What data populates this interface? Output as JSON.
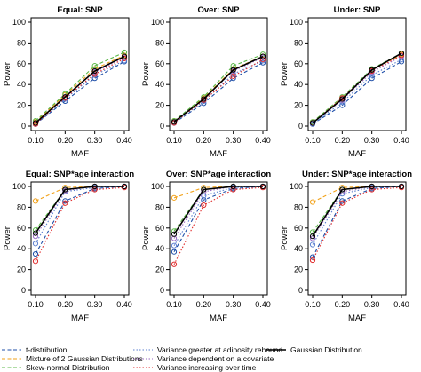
{
  "chart_data": [
    {
      "type": "line",
      "title": "Equal: SNP",
      "xlabel": "MAF",
      "ylabel": "Power",
      "x": [
        "0.10",
        "0.20",
        "0.30",
        "0.40"
      ],
      "ylim": [
        0,
        100
      ],
      "yticks": [
        0,
        20,
        40,
        60,
        80,
        100
      ],
      "series": [
        {
          "name": "t-distribution",
          "values": [
            2,
            24,
            46,
            62
          ]
        },
        {
          "name": "Mixture of 2 Gaussian Distributions",
          "values": [
            4,
            30,
            55,
            68
          ]
        },
        {
          "name": "Skew-normal Distribution",
          "values": [
            5,
            31,
            58,
            71
          ]
        },
        {
          "name": "Variance greater at adiposity rebound",
          "values": [
            2,
            26,
            49,
            63
          ]
        },
        {
          "name": "Variance dependent on a covariate",
          "values": [
            3,
            28,
            52,
            66
          ]
        },
        {
          "name": "Variance increasing over time",
          "values": [
            2,
            27,
            50,
            65
          ]
        },
        {
          "name": "Gaussian Distribution",
          "values": [
            3,
            28,
            53,
            67
          ]
        }
      ]
    },
    {
      "type": "line",
      "title": "Over: SNP",
      "xlabel": "MAF",
      "ylabel": "Power",
      "x": [
        "0.10",
        "0.20",
        "0.30",
        "0.40"
      ],
      "ylim": [
        0,
        100
      ],
      "yticks": [
        0,
        20,
        40,
        60,
        80,
        100
      ],
      "series": [
        {
          "name": "t-distribution",
          "values": [
            3,
            22,
            46,
            61
          ]
        },
        {
          "name": "Mixture of 2 Gaussian Distributions",
          "values": [
            5,
            27,
            55,
            67
          ]
        },
        {
          "name": "Skew-normal Distribution",
          "values": [
            5,
            28,
            58,
            69
          ]
        },
        {
          "name": "Variance greater at adiposity rebound",
          "values": [
            3,
            24,
            50,
            63
          ]
        },
        {
          "name": "Variance dependent on a covariate",
          "values": [
            4,
            26,
            53,
            66
          ]
        },
        {
          "name": "Variance increasing over time",
          "values": [
            3,
            25,
            48,
            64
          ]
        },
        {
          "name": "Gaussian Distribution",
          "values": [
            4,
            26,
            54,
            67
          ]
        }
      ]
    },
    {
      "type": "line",
      "title": "Under: SNP",
      "xlabel": "MAF",
      "ylabel": "Power",
      "x": [
        "0.10",
        "0.20",
        "0.30",
        "0.40"
      ],
      "ylim": [
        0,
        100
      ],
      "yticks": [
        0,
        20,
        40,
        60,
        80,
        100
      ],
      "series": [
        {
          "name": "t-distribution",
          "values": [
            2,
            20,
            46,
            62
          ]
        },
        {
          "name": "Mixture of 2 Gaussian Distributions",
          "values": [
            4,
            27,
            54,
            69
          ]
        },
        {
          "name": "Skew-normal Distribution",
          "values": [
            4,
            28,
            55,
            70
          ]
        },
        {
          "name": "Variance greater at adiposity rebound",
          "values": [
            2,
            23,
            49,
            64
          ]
        },
        {
          "name": "Variance dependent on a covariate",
          "values": [
            3,
            25,
            52,
            67
          ]
        },
        {
          "name": "Variance increasing over time",
          "values": [
            3,
            27,
            53,
            68
          ]
        },
        {
          "name": "Gaussian Distribution",
          "values": [
            3,
            26,
            54,
            70
          ]
        }
      ]
    },
    {
      "type": "line",
      "title": "Equal: SNP*age interaction",
      "xlabel": "MAF",
      "ylabel": "Power",
      "x": [
        "0.10",
        "0.20",
        "0.30",
        "0.40"
      ],
      "ylim": [
        0,
        100
      ],
      "yticks": [
        0,
        20,
        40,
        60,
        80,
        100
      ],
      "series": [
        {
          "name": "t-distribution",
          "values": [
            35,
            86,
            98,
            100
          ]
        },
        {
          "name": "Mixture of 2 Gaussian Distributions",
          "values": [
            86,
            99,
            100,
            100
          ]
        },
        {
          "name": "Skew-normal Distribution",
          "values": [
            58,
            97,
            100,
            100
          ]
        },
        {
          "name": "Variance greater at adiposity rebound",
          "values": [
            45,
            95,
            99,
            100
          ]
        },
        {
          "name": "Variance dependent on a covariate",
          "values": [
            52,
            96,
            100,
            100
          ]
        },
        {
          "name": "Variance increasing over time",
          "values": [
            28,
            84,
            97,
            99
          ]
        },
        {
          "name": "Gaussian Distribution",
          "values": [
            55,
            97,
            100,
            100
          ]
        }
      ]
    },
    {
      "type": "line",
      "title": "Over: SNP*age interaction",
      "xlabel": "MAF",
      "ylabel": "Power",
      "x": [
        "0.10",
        "0.20",
        "0.30",
        "0.40"
      ],
      "ylim": [
        0,
        100
      ],
      "yticks": [
        0,
        20,
        40,
        60,
        80,
        100
      ],
      "series": [
        {
          "name": "t-distribution",
          "values": [
            37,
            87,
            98,
            100
          ]
        },
        {
          "name": "Mixture of 2 Gaussian Distributions",
          "values": [
            89,
            99,
            100,
            100
          ]
        },
        {
          "name": "Skew-normal Distribution",
          "values": [
            57,
            97,
            100,
            100
          ]
        },
        {
          "name": "Variance greater at adiposity rebound",
          "values": [
            43,
            91,
            99,
            100
          ]
        },
        {
          "name": "Variance dependent on a covariate",
          "values": [
            50,
            95,
            100,
            100
          ]
        },
        {
          "name": "Variance increasing over time",
          "values": [
            25,
            82,
            97,
            99
          ]
        },
        {
          "name": "Gaussian Distribution",
          "values": [
            54,
            97,
            100,
            100
          ]
        }
      ]
    },
    {
      "type": "line",
      "title": "Under: SNP*age interaction",
      "xlabel": "MAF",
      "ylabel": "Power",
      "x": [
        "0.10",
        "0.20",
        "0.30",
        "0.40"
      ],
      "ylim": [
        0,
        100
      ],
      "yticks": [
        0,
        20,
        40,
        60,
        80,
        100
      ],
      "series": [
        {
          "name": "t-distribution",
          "values": [
            32,
            86,
            98,
            100
          ]
        },
        {
          "name": "Mixture of 2 Gaussian Distributions",
          "values": [
            85,
            99,
            100,
            100
          ]
        },
        {
          "name": "Skew-normal Distribution",
          "values": [
            56,
            97,
            100,
            100
          ]
        },
        {
          "name": "Variance greater at adiposity rebound",
          "values": [
            44,
            93,
            99,
            100
          ]
        },
        {
          "name": "Variance dependent on a covariate",
          "values": [
            50,
            95,
            100,
            100
          ]
        },
        {
          "name": "Variance increasing over time",
          "values": [
            29,
            84,
            97,
            99
          ]
        },
        {
          "name": "Gaussian Distribution",
          "values": [
            52,
            97,
            100,
            100
          ]
        }
      ]
    }
  ],
  "series_styles": [
    {
      "color": "#1f4fa8",
      "dash": "dash"
    },
    {
      "color": "#f2a21a",
      "dash": "dash"
    },
    {
      "color": "#5cb84a",
      "dash": "dash"
    },
    {
      "color": "#5b7fd0",
      "dash": "dot"
    },
    {
      "color": "#9b6bc4",
      "dash": "dot"
    },
    {
      "color": "#e02a2a",
      "dash": "dot"
    },
    {
      "color": "#000000",
      "dash": "solid"
    }
  ],
  "legend": {
    "placement": "bottom",
    "entries": [
      "t-distribution",
      "Mixture of 2 Gaussian Distributions",
      "Skew-normal Distribution",
      "Variance greater at adiposity rebound",
      "Variance dependent on a covariate",
      "Variance increasing over time",
      "Gaussian Distribution"
    ]
  }
}
